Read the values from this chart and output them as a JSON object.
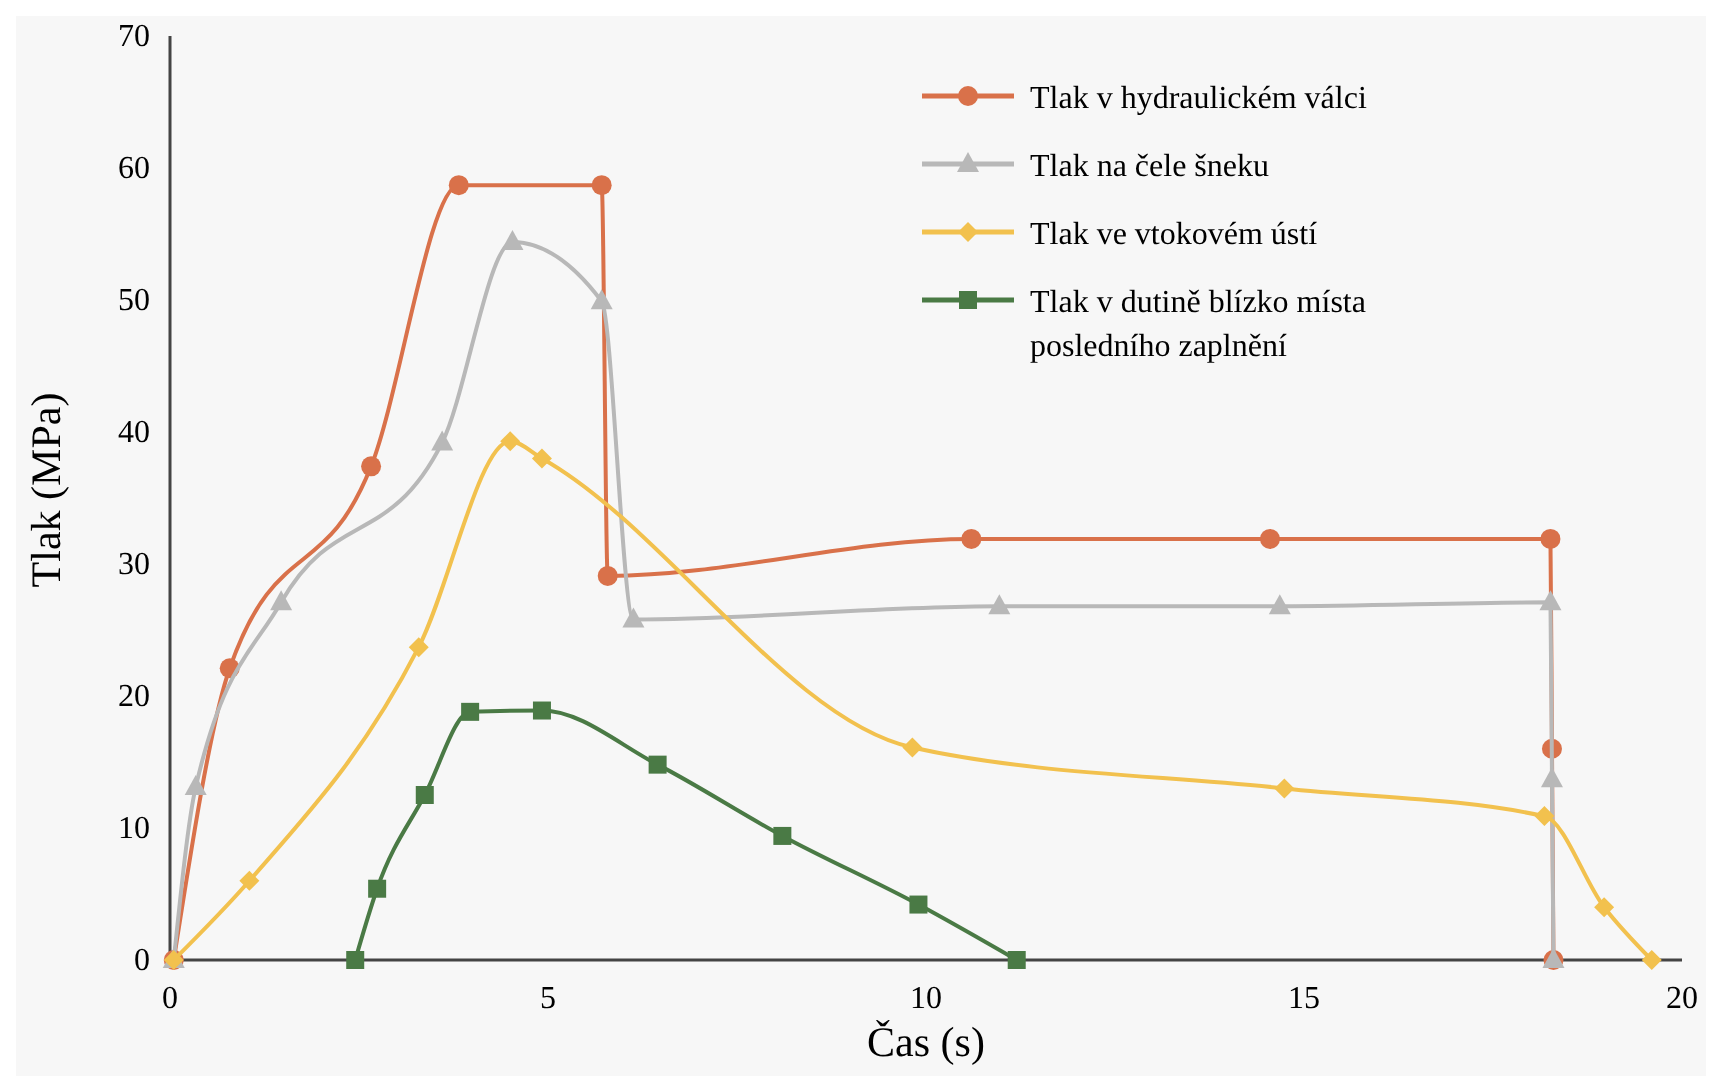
{
  "chart_data": {
    "type": "line",
    "xlabel": "Čas (s)",
    "ylabel": "Tlak (MPa)",
    "xlim": [
      0,
      20
    ],
    "ylim": [
      0,
      70
    ],
    "xticks": [
      0,
      5,
      10,
      15,
      20
    ],
    "yticks": [
      0,
      10,
      20,
      30,
      40,
      50,
      60,
      70
    ],
    "grid": false,
    "legend": "top right",
    "line_style": "solid",
    "series": [
      {
        "name": "Tlak v hydraulickém válci",
        "color": "#d9714a",
        "marker": "circle",
        "x": [
          0.05,
          0.79,
          2.66,
          3.82,
          5.71,
          5.79,
          10.6,
          14.55,
          18.26,
          18.28,
          18.3
        ],
        "values": [
          0,
          22.1,
          37.4,
          58.7,
          58.7,
          29.1,
          31.9,
          31.9,
          31.9,
          16,
          0
        ]
      },
      {
        "name": "Tlak na čele šneku",
        "color": "#b8b8b8",
        "marker": "triangle",
        "x": [
          0.05,
          0.34,
          1.47,
          3.6,
          4.53,
          5.71,
          6.13,
          10.97,
          14.68,
          18.26,
          18.28,
          18.3
        ],
        "values": [
          0,
          13.1,
          27.1,
          39.2,
          54.4,
          49.9,
          25.8,
          26.8,
          26.8,
          27.1,
          13.7,
          0
        ]
      },
      {
        "name": "Tlak ve vtokovém ústí",
        "color": "#f2c14e",
        "marker": "diamond",
        "x": [
          0.05,
          1.05,
          3.29,
          4.5,
          4.92,
          9.82,
          14.74,
          18.18,
          18.97,
          19.6
        ],
        "values": [
          0,
          6,
          23.7,
          39.3,
          38,
          16.1,
          13,
          10.9,
          4,
          0
        ]
      },
      {
        "name": "Tlak v dutině blízko místa posledního zaplnění",
        "color": "#4a7a45",
        "marker": "square",
        "x": [
          2.45,
          2.74,
          3.37,
          3.97,
          4.92,
          6.45,
          8.1,
          9.9,
          11.2
        ],
        "values": [
          0,
          5.4,
          12.5,
          18.8,
          18.9,
          14.8,
          9.4,
          4.2,
          0
        ]
      }
    ]
  }
}
